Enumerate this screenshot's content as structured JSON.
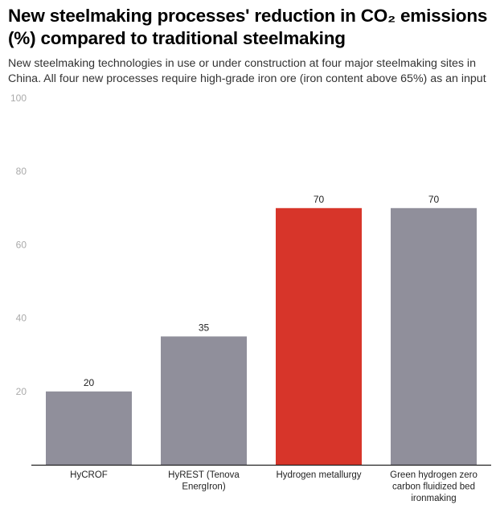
{
  "chart_data": {
    "type": "bar",
    "title": "New steelmaking processes' reduction in CO₂ emissions (%) compared to traditional steelmaking",
    "subtitle": "New steelmaking technologies in use or under construction at four major steelmaking sites in China. All four new processes require high-grade iron ore (iron content above 65%) as an input",
    "xlabel": "",
    "ylabel": "",
    "ylim": [
      0,
      100
    ],
    "yticks": [
      20,
      40,
      60,
      80,
      100
    ],
    "grid": false,
    "categories": [
      [
        "HyCROF"
      ],
      [
        "HyREST (Tenova",
        "EnergIron)"
      ],
      [
        "Hydrogen metallurgy"
      ],
      [
        "Green hydrogen zero",
        "carbon fluidized bed",
        "ironmaking"
      ]
    ],
    "values": [
      20,
      35,
      70,
      70
    ],
    "colors": [
      "#908f9b",
      "#908f9b",
      "#d7352a",
      "#908f9b"
    ],
    "axis_color": "#222222"
  }
}
